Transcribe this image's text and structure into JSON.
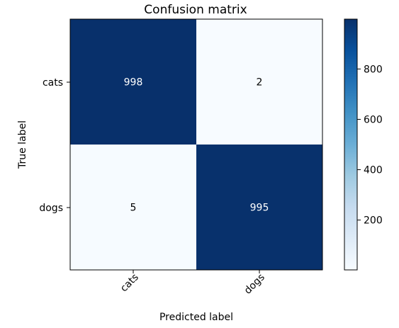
{
  "chart_data": {
    "type": "heatmap",
    "title": "Confusion matrix",
    "xlabel": "Predicted label",
    "ylabel": "True label",
    "x_categories": [
      "cats",
      "dogs"
    ],
    "y_categories": [
      "cats",
      "dogs"
    ],
    "values": [
      [
        998,
        2
      ],
      [
        5,
        995
      ]
    ],
    "colormap": "Blues",
    "color_low": "#f7fbff",
    "color_high": "#08306b",
    "colorbar": {
      "range": [
        2,
        998
      ],
      "ticks": [
        200,
        400,
        600,
        800
      ],
      "tick_labels": [
        "200",
        "400",
        "600",
        "800"
      ]
    },
    "cell_text_light": "#ffffff",
    "cell_text_dark": "#000000",
    "grid": false
  }
}
